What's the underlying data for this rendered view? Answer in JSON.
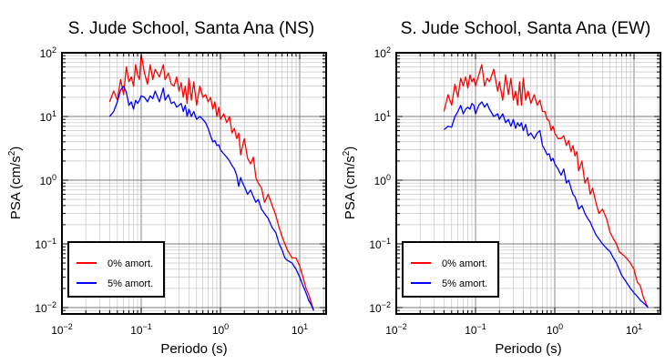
{
  "chart_data": [
    {
      "type": "line",
      "title": "S. Jude School, Santa Ana (NS)",
      "xlabel": "Periodo (s)",
      "ylabel_main": "PSA (cm/s",
      "ylabel_sup": "2",
      "ylabel_tail": ")",
      "xscale": "log",
      "yscale": "log",
      "xlim": [
        0.01,
        20
      ],
      "ylim": [
        0.008,
        110
      ],
      "grid": true,
      "legend_position": "bottom-left",
      "x_ticks": [
        {
          "base": "10",
          "exp": "−2"
        },
        {
          "base": "10",
          "exp": "−1"
        },
        {
          "base": "10",
          "exp": "0"
        },
        {
          "base": "10",
          "exp": "1"
        }
      ],
      "y_ticks": [
        {
          "base": "10",
          "exp": "2"
        },
        {
          "base": "10",
          "exp": "1"
        },
        {
          "base": "10",
          "exp": "0"
        },
        {
          "base": "10",
          "exp": "−1"
        },
        {
          "base": "10",
          "exp": "−2"
        }
      ],
      "series": [
        {
          "name": "0% amort.",
          "color": "#ff0000",
          "x": [
            0.04,
            0.045,
            0.05,
            0.055,
            0.06,
            0.065,
            0.07,
            0.075,
            0.08,
            0.085,
            0.09,
            0.095,
            0.1,
            0.11,
            0.12,
            0.13,
            0.14,
            0.15,
            0.17,
            0.19,
            0.2,
            0.22,
            0.24,
            0.26,
            0.28,
            0.3,
            0.32,
            0.34,
            0.36,
            0.38,
            0.4,
            0.43,
            0.46,
            0.5,
            0.55,
            0.6,
            0.65,
            0.7,
            0.75,
            0.8,
            0.85,
            0.9,
            0.95,
            1.0,
            1.1,
            1.2,
            1.3,
            1.4,
            1.5,
            1.6,
            1.7,
            1.8,
            1.9,
            2.0,
            2.2,
            2.4,
            2.6,
            2.8,
            3.0,
            3.3,
            3.6,
            4.0,
            4.5,
            5.0,
            5.5,
            6.0,
            6.5,
            7.0,
            8.0,
            9.0,
            10.0,
            11.0,
            12.0,
            13.0,
            14.0,
            15.0
          ],
          "y": [
            17,
            25,
            18,
            38,
            22,
            60,
            35,
            42,
            30,
            65,
            45,
            38,
            95,
            48,
            32,
            65,
            38,
            55,
            42,
            65,
            38,
            48,
            32,
            30,
            42,
            25,
            34,
            20,
            30,
            16,
            40,
            18,
            35,
            15,
            30,
            20,
            22,
            17,
            20,
            13,
            17,
            10,
            14,
            9,
            11,
            8,
            10,
            5.5,
            6.5,
            4.5,
            5.5,
            2.5,
            3.5,
            4.5,
            2.2,
            1.8,
            2.3,
            1.1,
            0.9,
            0.75,
            0.45,
            0.6,
            0.4,
            0.28,
            0.18,
            0.13,
            0.1,
            0.08,
            0.06,
            0.06,
            0.045,
            0.03,
            0.02,
            0.016,
            0.012,
            0.009
          ]
        },
        {
          "name": "5% amort.",
          "color": "#0000ff",
          "x": [
            0.04,
            0.045,
            0.05,
            0.055,
            0.06,
            0.065,
            0.07,
            0.075,
            0.08,
            0.085,
            0.09,
            0.095,
            0.1,
            0.11,
            0.12,
            0.13,
            0.14,
            0.15,
            0.17,
            0.19,
            0.2,
            0.22,
            0.24,
            0.26,
            0.28,
            0.3,
            0.32,
            0.34,
            0.36,
            0.38,
            0.4,
            0.43,
            0.46,
            0.5,
            0.55,
            0.6,
            0.65,
            0.7,
            0.75,
            0.8,
            0.85,
            0.9,
            0.95,
            1.0,
            1.1,
            1.2,
            1.3,
            1.4,
            1.5,
            1.6,
            1.7,
            1.8,
            1.9,
            2.0,
            2.2,
            2.4,
            2.6,
            2.8,
            3.0,
            3.3,
            3.6,
            4.0,
            4.5,
            5.0,
            5.5,
            6.0,
            6.5,
            7.0,
            8.0,
            9.0,
            10.0,
            11.0,
            12.0,
            13.0,
            14.0,
            15.0
          ],
          "y": [
            10,
            12,
            17,
            26,
            30,
            24,
            15,
            17,
            13,
            18,
            16,
            18,
            21,
            20,
            17,
            21,
            19,
            25,
            17,
            28,
            18,
            22,
            16,
            17,
            14,
            15,
            16,
            12,
            15,
            10,
            13,
            10,
            12,
            9,
            10,
            9,
            8,
            6.5,
            5,
            4,
            4.2,
            3.5,
            3.6,
            3,
            2.6,
            2.3,
            2,
            1.7,
            1.5,
            1.2,
            0.8,
            1.1,
            0.9,
            0.8,
            0.6,
            0.7,
            0.55,
            0.45,
            0.5,
            0.35,
            0.3,
            0.25,
            0.18,
            0.15,
            0.1,
            0.08,
            0.06,
            0.055,
            0.05,
            0.04,
            0.03,
            0.022,
            0.017,
            0.013,
            0.011,
            0.009
          ]
        }
      ]
    },
    {
      "type": "line",
      "title": "S. Jude School, Santa Ana (EW)",
      "xlabel": "Periodo (s)",
      "ylabel_main": "PSA (cm/s",
      "ylabel_sup": "2",
      "ylabel_tail": ")",
      "xscale": "log",
      "yscale": "log",
      "xlim": [
        0.01,
        20
      ],
      "ylim": [
        0.008,
        110
      ],
      "grid": true,
      "legend_position": "bottom-left",
      "x_ticks": [
        {
          "base": "10",
          "exp": "−2"
        },
        {
          "base": "10",
          "exp": "−1"
        },
        {
          "base": "10",
          "exp": "0"
        },
        {
          "base": "10",
          "exp": "1"
        }
      ],
      "y_ticks": [
        {
          "base": "10",
          "exp": "2"
        },
        {
          "base": "10",
          "exp": "1"
        },
        {
          "base": "10",
          "exp": "0"
        },
        {
          "base": "10",
          "exp": "−1"
        },
        {
          "base": "10",
          "exp": "−2"
        }
      ],
      "series": [
        {
          "name": "0% amort.",
          "color": "#ff0000",
          "x": [
            0.04,
            0.045,
            0.05,
            0.055,
            0.06,
            0.065,
            0.07,
            0.075,
            0.08,
            0.085,
            0.09,
            0.095,
            0.1,
            0.11,
            0.12,
            0.13,
            0.14,
            0.15,
            0.17,
            0.19,
            0.2,
            0.22,
            0.24,
            0.26,
            0.28,
            0.3,
            0.32,
            0.34,
            0.36,
            0.38,
            0.4,
            0.43,
            0.46,
            0.5,
            0.55,
            0.6,
            0.65,
            0.7,
            0.75,
            0.8,
            0.85,
            0.9,
            0.95,
            1.0,
            1.1,
            1.2,
            1.3,
            1.4,
            1.5,
            1.6,
            1.7,
            1.8,
            1.9,
            2.0,
            2.2,
            2.4,
            2.6,
            2.8,
            3.0,
            3.3,
            3.6,
            4.0,
            4.5,
            5.0,
            5.5,
            6.0,
            6.5,
            7.0,
            8.0,
            9.0,
            10.0,
            11.0,
            12.0,
            13.0,
            14.0,
            15.0
          ],
          "y": [
            12,
            22,
            15,
            32,
            20,
            40,
            30,
            42,
            28,
            45,
            35,
            40,
            30,
            45,
            65,
            30,
            40,
            35,
            55,
            25,
            35,
            18,
            45,
            22,
            40,
            18,
            25,
            15,
            35,
            15,
            40,
            18,
            25,
            16,
            22,
            15,
            18,
            12,
            12,
            9,
            8.5,
            6,
            7,
            5.5,
            4.5,
            4.5,
            5,
            3.5,
            4.2,
            2.8,
            3.5,
            2.4,
            2.8,
            1.4,
            2.0,
            0.9,
            1.1,
            0.6,
            0.75,
            0.45,
            0.3,
            0.35,
            0.25,
            0.15,
            0.12,
            0.1,
            0.075,
            0.07,
            0.06,
            0.05,
            0.04,
            0.025,
            0.022,
            0.015,
            0.012,
            0.01
          ]
        },
        {
          "name": "5% amort.",
          "color": "#0000ff",
          "x": [
            0.04,
            0.045,
            0.05,
            0.055,
            0.06,
            0.065,
            0.07,
            0.075,
            0.08,
            0.085,
            0.09,
            0.095,
            0.1,
            0.11,
            0.12,
            0.13,
            0.14,
            0.15,
            0.17,
            0.19,
            0.2,
            0.22,
            0.24,
            0.26,
            0.28,
            0.3,
            0.32,
            0.34,
            0.36,
            0.38,
            0.4,
            0.43,
            0.46,
            0.5,
            0.55,
            0.6,
            0.65,
            0.7,
            0.75,
            0.8,
            0.85,
            0.9,
            0.95,
            1.0,
            1.1,
            1.2,
            1.3,
            1.4,
            1.5,
            1.6,
            1.7,
            1.8,
            1.9,
            2.0,
            2.2,
            2.4,
            2.6,
            2.8,
            3.0,
            3.3,
            3.6,
            4.0,
            4.5,
            5.0,
            5.5,
            6.0,
            6.5,
            7.0,
            8.0,
            9.0,
            10.0,
            11.0,
            12.0,
            13.0,
            14.0,
            15.0
          ],
          "y": [
            6.2,
            7,
            6.8,
            10,
            12,
            15,
            11,
            13,
            14,
            13,
            16,
            15,
            11,
            15,
            17,
            14,
            16,
            13,
            10,
            11,
            9,
            11,
            8,
            9,
            7,
            9,
            6.5,
            8,
            7,
            8,
            6,
            7.5,
            5,
            5.5,
            4.5,
            5.5,
            6,
            3.5,
            3.0,
            2.5,
            2.6,
            2.0,
            2.2,
            1.8,
            1.5,
            1.2,
            1.5,
            0.9,
            1.0,
            0.75,
            0.6,
            0.55,
            0.45,
            0.35,
            0.4,
            0.3,
            0.25,
            0.22,
            0.18,
            0.14,
            0.12,
            0.1,
            0.085,
            0.075,
            0.06,
            0.05,
            0.04,
            0.032,
            0.025,
            0.02,
            0.017,
            0.015,
            0.013,
            0.012,
            0.011,
            0.01
          ]
        }
      ]
    }
  ]
}
